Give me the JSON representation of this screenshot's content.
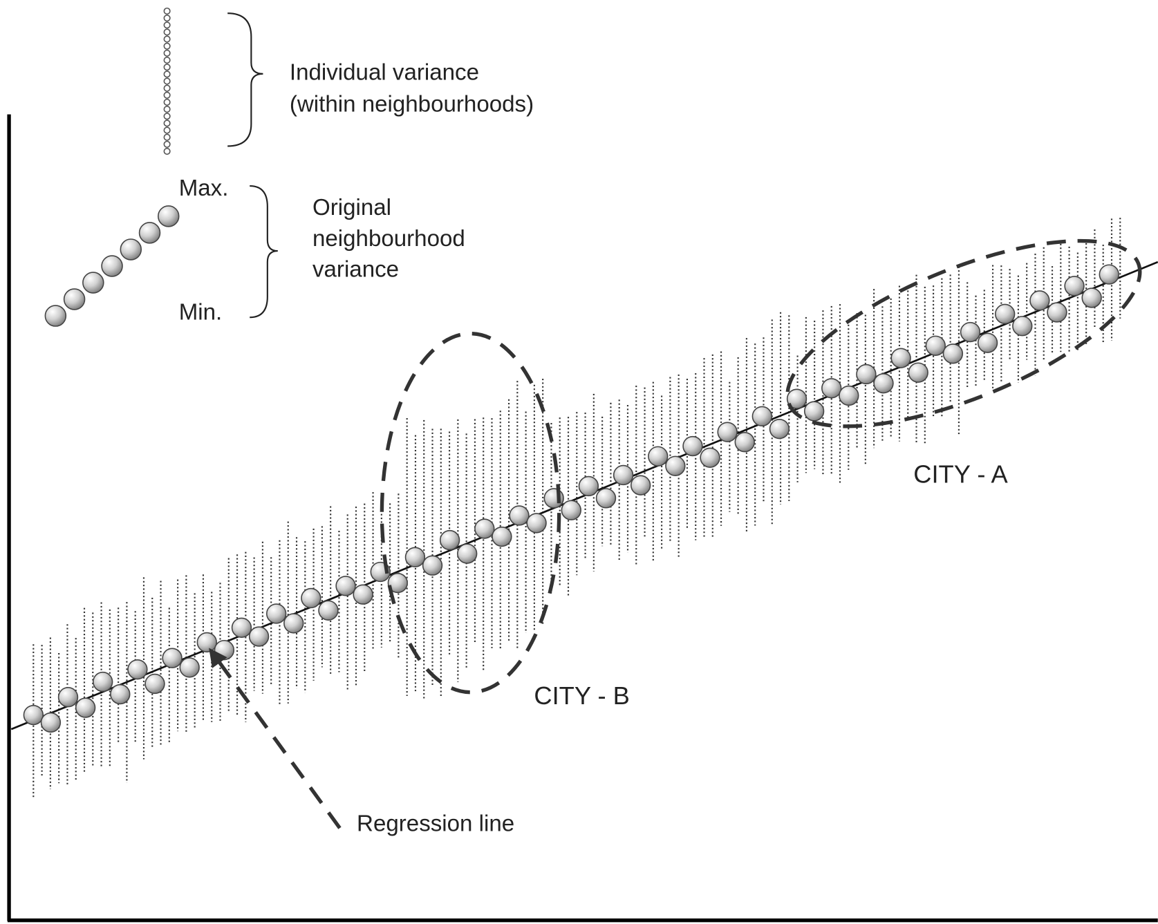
{
  "legend": {
    "individual_variance": [
      "Individual variance",
      "(within neighbourhoods)"
    ],
    "neighbourhood_variance": {
      "max": "Max.",
      "min": "Min.",
      "label": [
        "Original",
        "neighbourhood",
        "variance"
      ]
    }
  },
  "labels": {
    "city_a": "CITY - A",
    "city_b": "CITY - B",
    "regression_line": "Regression line"
  }
}
